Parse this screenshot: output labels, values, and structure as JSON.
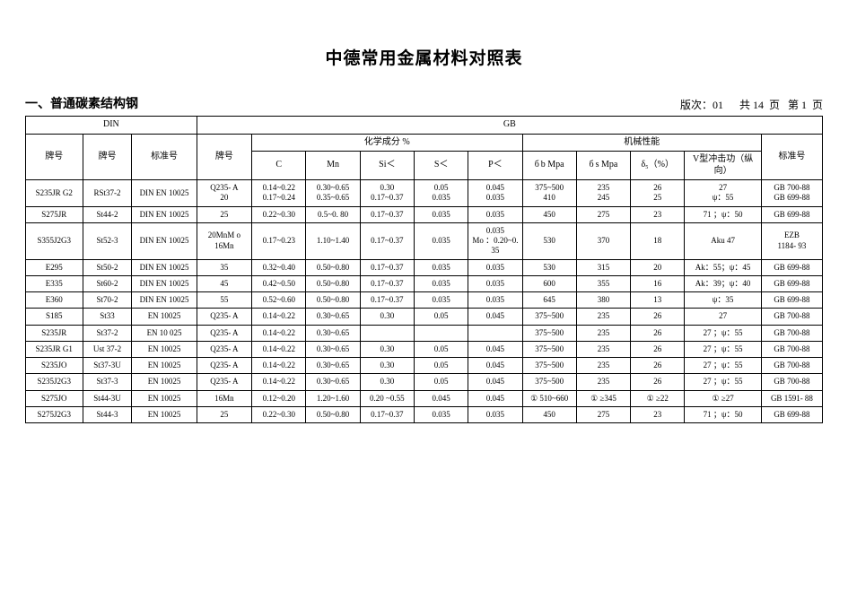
{
  "title": "中德常用金属材料对照表",
  "section_heading": "一、普通碳素结构钢",
  "page_info": "版次：01      共 14  页   第 1  页",
  "hdr": {
    "din": "DIN",
    "gb": "GB",
    "grade": "牌号",
    "std_no": "标准号",
    "chem": "化学成分        %",
    "mech": "机械性能",
    "C": "C",
    "Mn": "Mn",
    "Si": "Si＜",
    "S": "S＜",
    "P": "P＜",
    "sigma_b": "б b  Mpa",
    "sigma_s": "б s  Mpa",
    "delta": "δ₅（%）",
    "impact": "V型冲击功（纵向）"
  },
  "rows": [
    {
      "din1": "S235JR  G2",
      "din2": "RSt37-2",
      "din3": "DIN EN  10025",
      "gb": "Q235- A\n20",
      "C": "0.14~0.22\n0.17~0.24",
      "Mn": "0.30~0.65\n0.35~0.65",
      "Si": "0.30\n0.17~0.37",
      "S": "0.05\n0.035",
      "P": "0.045\n0.035",
      "sb": "375~500\n410",
      "ss": "235\n245",
      "d": "26\n25",
      "imp": "27\nψ：55",
      "std": "GB 700-88\nGB 699-88"
    },
    {
      "din1": "S275JR",
      "din2": "St44-2",
      "din3": "DIN EN  10025",
      "gb": "25",
      "C": "0.22~0.30",
      "Mn": "0.5~0. 80",
      "Si": "0.17~0.37",
      "S": "0.035",
      "P": "0.035",
      "sb": "450",
      "ss": "275",
      "d": "23",
      "imp": "71 ；ψ：50",
      "std": "GB 699-88"
    },
    {
      "din1": "S355J2G3",
      "din2": "St52-3",
      "din3": "DIN EN  10025",
      "gb": "20MnM o\n16Mn",
      "C": "0.17~0.23",
      "Mn": "1.10~1.40",
      "Si": "0.17~0.37",
      "S": "0.035",
      "P": "0.035\nMo ：0.20~0. 35",
      "sb": "530",
      "ss": "370",
      "d": "18",
      "imp": "Aku 47",
      "std": "EZB\n1184- 93"
    },
    {
      "din1": "E295",
      "din2": "St50-2",
      "din3": "DIN EN  10025",
      "gb": "35",
      "C": "0.32~0.40",
      "Mn": "0.50~0.80",
      "Si": "0.17~0.37",
      "S": "0.035",
      "P": "0.035",
      "sb": "530",
      "ss": "315",
      "d": "20",
      "imp": "Ak：55；ψ：45",
      "std": "GB 699-88"
    },
    {
      "din1": "E335",
      "din2": "St60-2",
      "din3": "DIN EN  10025",
      "gb": "45",
      "C": "0.42~0.50",
      "Mn": "0.50~0.80",
      "Si": "0.17~0.37",
      "S": "0.035",
      "P": "0.035",
      "sb": "600",
      "ss": "355",
      "d": "16",
      "imp": "Ak：39；ψ：40",
      "std": "GB 699-88"
    },
    {
      "din1": "E360",
      "din2": "St70-2",
      "din3": "DIN EN  10025",
      "gb": "55",
      "C": "0.52~0.60",
      "Mn": "0.50~0.80",
      "Si": "0.17~0.37",
      "S": "0.035",
      "P": "0.035",
      "sb": "645",
      "ss": "380",
      "d": "13",
      "imp": "ψ：35",
      "std": "GB 699-88"
    },
    {
      "din1": "S185",
      "din2": "St33",
      "din3": "EN 10025",
      "gb": "Q235- A",
      "C": "0.14~0.22",
      "Mn": "0.30~0.65",
      "Si": "0.30",
      "S": "0.05",
      "P": "0.045",
      "sb": "375~500",
      "ss": "235",
      "d": "26",
      "imp": "27",
      "std": "GB 700-88"
    },
    {
      "din1": "S235JR",
      "din2": "St37-2",
      "din3": "EN 10 025",
      "gb": "Q235- A",
      "C": "0.14~0.22",
      "Mn": "0.30~0.65",
      "Si": "",
      "S": "",
      "P": "",
      "sb": "375~500",
      "ss": "235",
      "d": "26",
      "imp": "27 ；ψ：55",
      "std": "GB 700-88"
    },
    {
      "din1": "S235JR  G1",
      "din2": "Ust 37-2",
      "din3": "EN 10025",
      "gb": "Q235- A",
      "C": "0.14~0.22",
      "Mn": "0.30~0.65",
      "Si": "0.30",
      "S": "0.05",
      "P": "0.045",
      "sb": "375~500",
      "ss": "235",
      "d": "26",
      "imp": "27 ；ψ：55",
      "std": "GB 700-88"
    },
    {
      "din1": "S235JO",
      "din2": "St37-3U",
      "din3": "EN 10025",
      "gb": "Q235- A",
      "C": "0.14~0.22",
      "Mn": "0.30~0.65",
      "Si": "0.30",
      "S": "0.05",
      "P": "0.045",
      "sb": "375~500",
      "ss": "235",
      "d": "26",
      "imp": "27 ；ψ：55",
      "std": "GB 700-88"
    },
    {
      "din1": "S235J2G3",
      "din2": "St37-3",
      "din3": "EN 10025",
      "gb": "Q235- A",
      "C": "0.14~0.22",
      "Mn": "0.30~0.65",
      "Si": "0.30",
      "S": "0.05",
      "P": "0.045",
      "sb": "375~500",
      "ss": "235",
      "d": "26",
      "imp": "27 ；ψ：55",
      "std": "GB 700-88"
    },
    {
      "din1": "S275JO",
      "din2": "St44-3U",
      "din3": "EN 10025",
      "gb": "16Mn",
      "C": "0.12~0.20",
      "Mn": "1.20~1.60",
      "Si": "0.20 ~0.55",
      "S": "0.045",
      "P": "0.045",
      "sb": "① 510~660",
      "ss": "① ≥345",
      "d": "① ≥22",
      "imp": "① ≥27",
      "std": "GB 1591-  88"
    },
    {
      "din1": "S275J2G3",
      "din2": "St44-3",
      "din3": "EN 10025",
      "gb": "25",
      "C": "0.22~0.30",
      "Mn": "0.50~0.80",
      "Si": "0.17~0.37",
      "S": "0.035",
      "P": "0.035",
      "sb": "450",
      "ss": "275",
      "d": "23",
      "imp": "71 ；ψ：50",
      "std": "GB 699-88"
    }
  ]
}
